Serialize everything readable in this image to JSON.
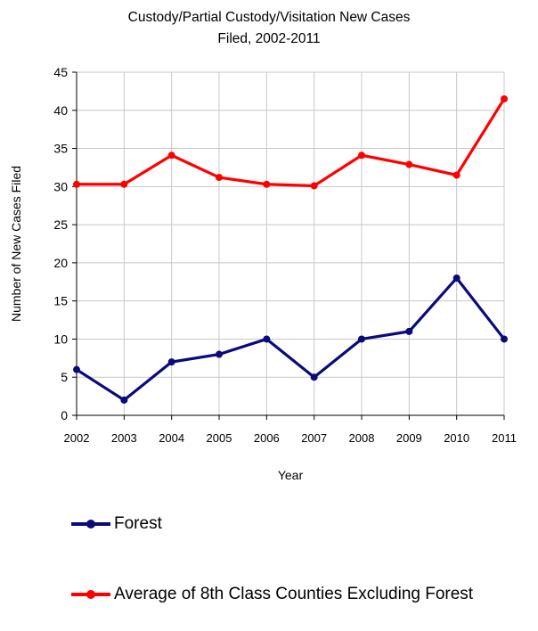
{
  "chart_data": {
    "type": "line",
    "title_lines": [
      "Custody/Partial Custody/Visitation New  Cases",
      "Filed, 2002-2011"
    ],
    "xlabel": "Year",
    "ylabel": "Number of New Cases Filed",
    "ylim": [
      0,
      45
    ],
    "yticks": [
      0,
      5,
      10,
      15,
      20,
      25,
      30,
      35,
      40,
      45
    ],
    "grid": true,
    "legend_position": "bottom",
    "categories": [
      "2002",
      "2003",
      "2004",
      "2005",
      "2006",
      "2007",
      "2008",
      "2009",
      "2010",
      "2011"
    ],
    "series": [
      {
        "name": "Forest",
        "color": "#0a0a7a",
        "values": [
          6,
          2,
          7,
          8,
          10,
          5,
          10,
          11,
          18,
          10
        ]
      },
      {
        "name": "Average of 8th Class Counties Excluding Forest",
        "color": "#ff0000",
        "values": [
          30.3,
          30.3,
          34.1,
          31.2,
          30.3,
          30.1,
          34.1,
          32.9,
          31.5,
          41.5
        ]
      }
    ]
  }
}
